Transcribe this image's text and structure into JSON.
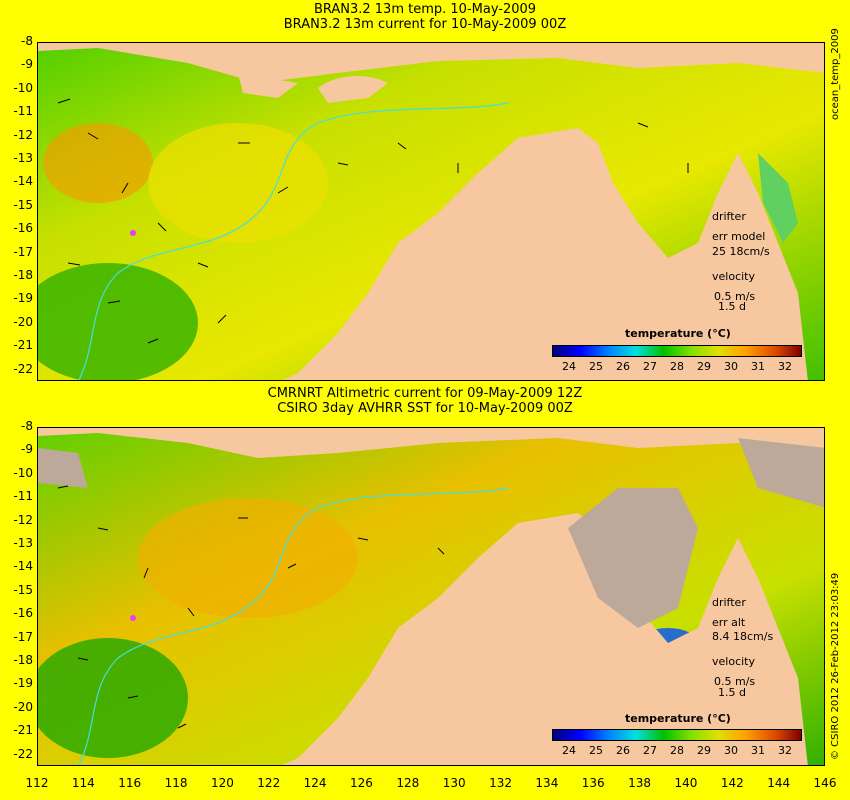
{
  "top": {
    "title_line1": "BRAN3.2 13m temp. 10-May-2009",
    "title_line2": "BRAN3.2 13m current for 10-May-2009 00Z",
    "drifter_label": "drifter",
    "err_label": "err model",
    "err_value": "25 18cm/s",
    "velocity_label": "velocity",
    "velocity_scale": "0.5 m/s",
    "velocity_days": "1.5 d",
    "colorbar_title": "temperature (°C)",
    "side_label": "ocean_temp_2009"
  },
  "bottom": {
    "title_line1": "CMRNRT Altimetric current for 09-May-2009 12Z",
    "title_line2": "CSIRO 3day AVHRR SST for 10-May-2009 00Z",
    "drifter_label": "drifter",
    "err_label": "err alt",
    "err_value": "8.4 18cm/s",
    "velocity_label": "velocity",
    "velocity_scale": "0.5 m/s",
    "velocity_days": "1.5 d",
    "colorbar_title": "temperature (°C)",
    "side_label": "© CSIRO 2012  26-Feb-2012 23:03:49"
  },
  "y_ticks": [
    "-8",
    "-9",
    "-10",
    "-11",
    "-12",
    "-13",
    "-14",
    "-15",
    "-16",
    "-17",
    "-18",
    "-19",
    "-20",
    "-21",
    "-22"
  ],
  "x_ticks": [
    "112",
    "114",
    "116",
    "118",
    "120",
    "122",
    "124",
    "126",
    "128",
    "130",
    "132",
    "134",
    "136",
    "138",
    "140",
    "142",
    "144",
    "146"
  ],
  "colorbar_ticks": [
    "24",
    "25",
    "26",
    "27",
    "28",
    "29",
    "30",
    "31",
    "32"
  ],
  "colorbar_colors": [
    "#000080",
    "#0000ff",
    "#0080ff",
    "#00e0e0",
    "#00c000",
    "#80e000",
    "#e0e000",
    "#ffa000",
    "#e05000",
    "#800000"
  ],
  "colors": {
    "background": "#ffff00",
    "land": "#f7c8a0",
    "cloud": "#bda99a",
    "drifter": "#e040ff",
    "isobath": "#40e0e0"
  }
}
